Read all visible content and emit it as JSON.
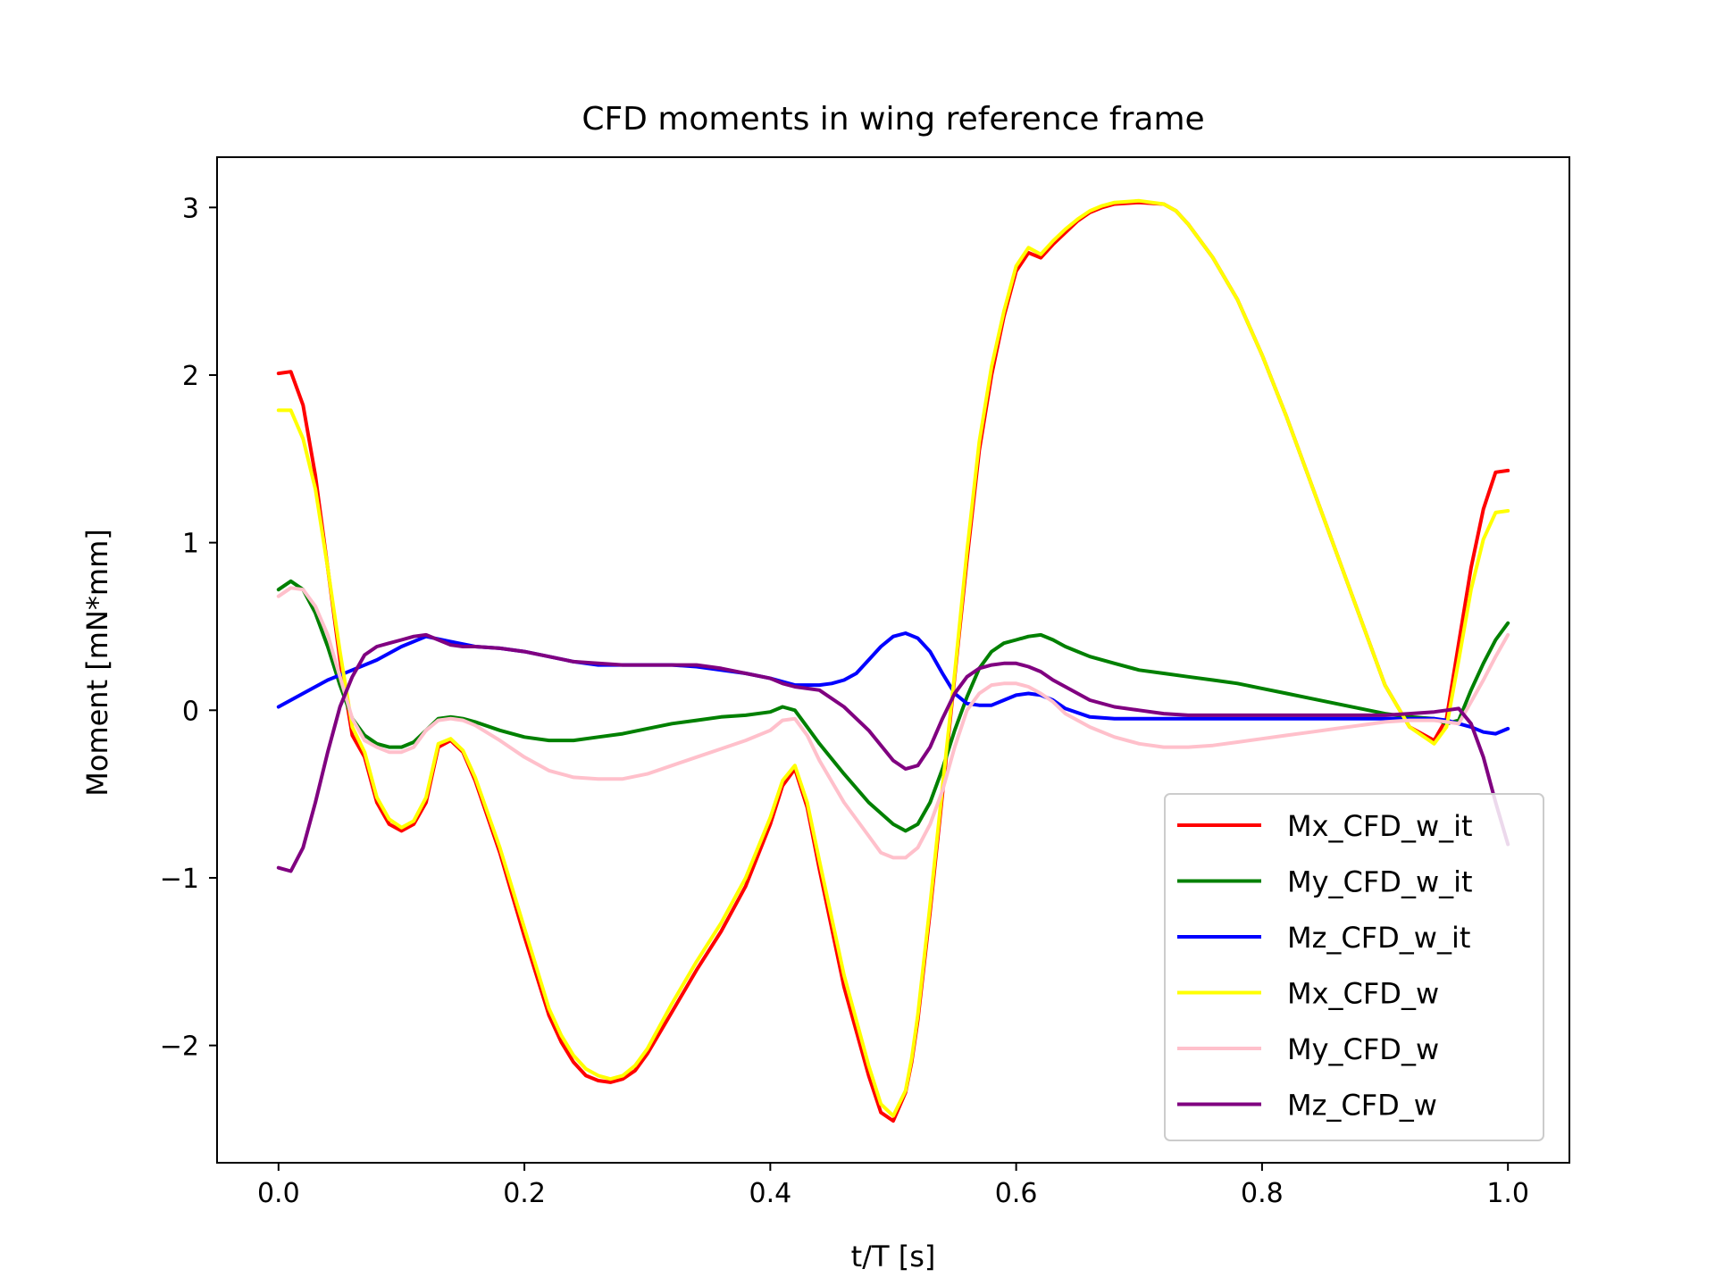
{
  "chart_data": {
    "type": "line",
    "title": "CFD moments in wing reference frame",
    "xlabel": "t/T [s]",
    "ylabel": "Moment [mN*mm]",
    "xlim": [
      -0.05,
      1.05
    ],
    "ylim": [
      -2.7,
      3.3
    ],
    "xticks": [
      0.0,
      0.2,
      0.4,
      0.6,
      0.8,
      1.0
    ],
    "xtick_labels": [
      "0.0",
      "0.2",
      "0.4",
      "0.6",
      "0.8",
      "1.0"
    ],
    "yticks": [
      -2,
      -1,
      0,
      1,
      2,
      3
    ],
    "ytick_labels": [
      "−2",
      "−1",
      "0",
      "1",
      "2",
      "3"
    ],
    "legend_position": "bottom-right",
    "grid": false,
    "series": [
      {
        "name": "Mx_CFD_w_it",
        "color": "#ff0000",
        "x": [
          0.0,
          0.01,
          0.02,
          0.03,
          0.04,
          0.05,
          0.06,
          0.07,
          0.08,
          0.09,
          0.1,
          0.11,
          0.12,
          0.13,
          0.14,
          0.15,
          0.16,
          0.18,
          0.2,
          0.22,
          0.23,
          0.24,
          0.25,
          0.26,
          0.27,
          0.28,
          0.29,
          0.3,
          0.32,
          0.34,
          0.36,
          0.38,
          0.4,
          0.41,
          0.42,
          0.43,
          0.44,
          0.46,
          0.48,
          0.49,
          0.5,
          0.51,
          0.515,
          0.52,
          0.53,
          0.54,
          0.55,
          0.56,
          0.57,
          0.58,
          0.59,
          0.6,
          0.61,
          0.62,
          0.63,
          0.64,
          0.65,
          0.66,
          0.67,
          0.68,
          0.7,
          0.72,
          0.73,
          0.74,
          0.76,
          0.78,
          0.8,
          0.82,
          0.84,
          0.86,
          0.88,
          0.9,
          0.92,
          0.94,
          0.95,
          0.96,
          0.97,
          0.98,
          0.99,
          1.0
        ],
        "y": [
          2.01,
          2.02,
          1.82,
          1.4,
          0.85,
          0.3,
          -0.15,
          -0.28,
          -0.55,
          -0.68,
          -0.72,
          -0.68,
          -0.55,
          -0.22,
          -0.18,
          -0.25,
          -0.42,
          -0.85,
          -1.35,
          -1.82,
          -1.98,
          -2.1,
          -2.18,
          -2.21,
          -2.22,
          -2.2,
          -2.15,
          -2.05,
          -1.8,
          -1.55,
          -1.32,
          -1.05,
          -0.68,
          -0.45,
          -0.35,
          -0.58,
          -0.95,
          -1.65,
          -2.18,
          -2.4,
          -2.45,
          -2.28,
          -2.1,
          -1.85,
          -1.2,
          -0.5,
          0.2,
          0.9,
          1.55,
          2.0,
          2.35,
          2.62,
          2.73,
          2.7,
          2.78,
          2.85,
          2.92,
          2.97,
          3.0,
          3.02,
          3.03,
          3.02,
          2.98,
          2.9,
          2.7,
          2.45,
          2.12,
          1.75,
          1.35,
          0.95,
          0.55,
          0.15,
          -0.1,
          -0.18,
          -0.05,
          0.4,
          0.85,
          1.2,
          1.42,
          1.43
        ]
      },
      {
        "name": "My_CFD_w_it",
        "color": "#008000",
        "x": [
          0.0,
          0.01,
          0.02,
          0.03,
          0.04,
          0.05,
          0.06,
          0.07,
          0.08,
          0.09,
          0.1,
          0.11,
          0.12,
          0.13,
          0.14,
          0.15,
          0.16,
          0.18,
          0.2,
          0.22,
          0.24,
          0.26,
          0.28,
          0.3,
          0.32,
          0.34,
          0.36,
          0.38,
          0.4,
          0.41,
          0.42,
          0.43,
          0.44,
          0.46,
          0.48,
          0.5,
          0.51,
          0.52,
          0.53,
          0.54,
          0.55,
          0.56,
          0.57,
          0.58,
          0.59,
          0.6,
          0.61,
          0.62,
          0.63,
          0.64,
          0.65,
          0.66,
          0.68,
          0.7,
          0.72,
          0.74,
          0.76,
          0.78,
          0.8,
          0.82,
          0.84,
          0.86,
          0.88,
          0.9,
          0.92,
          0.94,
          0.95,
          0.96,
          0.97,
          0.98,
          0.99,
          1.0
        ],
        "y": [
          0.72,
          0.77,
          0.72,
          0.58,
          0.38,
          0.15,
          -0.05,
          -0.15,
          -0.2,
          -0.22,
          -0.22,
          -0.19,
          -0.12,
          -0.05,
          -0.04,
          -0.05,
          -0.07,
          -0.12,
          -0.16,
          -0.18,
          -0.18,
          -0.16,
          -0.14,
          -0.11,
          -0.08,
          -0.06,
          -0.04,
          -0.03,
          -0.01,
          0.02,
          0.0,
          -0.1,
          -0.2,
          -0.38,
          -0.55,
          -0.68,
          -0.72,
          -0.68,
          -0.55,
          -0.35,
          -0.12,
          0.08,
          0.25,
          0.35,
          0.4,
          0.42,
          0.44,
          0.45,
          0.42,
          0.38,
          0.35,
          0.32,
          0.28,
          0.24,
          0.22,
          0.2,
          0.18,
          0.16,
          0.13,
          0.1,
          0.07,
          0.04,
          0.01,
          -0.02,
          -0.04,
          -0.05,
          -0.08,
          -0.06,
          0.12,
          0.28,
          0.42,
          0.52
        ]
      },
      {
        "name": "Mz_CFD_w_it",
        "color": "#0000ff",
        "x": [
          0.0,
          0.02,
          0.04,
          0.06,
          0.08,
          0.1,
          0.12,
          0.14,
          0.16,
          0.18,
          0.2,
          0.22,
          0.24,
          0.26,
          0.28,
          0.3,
          0.32,
          0.34,
          0.36,
          0.38,
          0.4,
          0.42,
          0.44,
          0.45,
          0.46,
          0.47,
          0.48,
          0.49,
          0.5,
          0.51,
          0.52,
          0.53,
          0.54,
          0.55,
          0.56,
          0.57,
          0.58,
          0.59,
          0.6,
          0.61,
          0.62,
          0.63,
          0.64,
          0.66,
          0.68,
          0.7,
          0.72,
          0.74,
          0.76,
          0.78,
          0.8,
          0.82,
          0.84,
          0.86,
          0.88,
          0.9,
          0.92,
          0.94,
          0.95,
          0.96,
          0.97,
          0.98,
          0.99,
          1.0
        ],
        "y": [
          0.02,
          0.1,
          0.18,
          0.24,
          0.3,
          0.38,
          0.44,
          0.41,
          0.38,
          0.37,
          0.35,
          0.32,
          0.29,
          0.27,
          0.27,
          0.27,
          0.27,
          0.26,
          0.24,
          0.22,
          0.19,
          0.15,
          0.15,
          0.16,
          0.18,
          0.22,
          0.3,
          0.38,
          0.44,
          0.46,
          0.43,
          0.35,
          0.22,
          0.1,
          0.04,
          0.03,
          0.03,
          0.06,
          0.09,
          0.1,
          0.09,
          0.06,
          0.01,
          -0.04,
          -0.05,
          -0.05,
          -0.05,
          -0.05,
          -0.05,
          -0.05,
          -0.05,
          -0.05,
          -0.05,
          -0.05,
          -0.05,
          -0.05,
          -0.05,
          -0.05,
          -0.06,
          -0.08,
          -0.1,
          -0.13,
          -0.14,
          -0.11
        ]
      },
      {
        "name": "Mx_CFD_w",
        "color": "#ffff00",
        "x": [
          0.0,
          0.01,
          0.02,
          0.03,
          0.04,
          0.05,
          0.06,
          0.07,
          0.08,
          0.09,
          0.1,
          0.11,
          0.12,
          0.13,
          0.14,
          0.15,
          0.16,
          0.18,
          0.2,
          0.22,
          0.23,
          0.24,
          0.25,
          0.26,
          0.27,
          0.28,
          0.29,
          0.3,
          0.32,
          0.34,
          0.36,
          0.38,
          0.4,
          0.41,
          0.42,
          0.43,
          0.44,
          0.46,
          0.48,
          0.49,
          0.5,
          0.51,
          0.515,
          0.52,
          0.53,
          0.54,
          0.55,
          0.56,
          0.57,
          0.58,
          0.59,
          0.6,
          0.61,
          0.62,
          0.63,
          0.64,
          0.65,
          0.66,
          0.67,
          0.68,
          0.7,
          0.72,
          0.73,
          0.74,
          0.76,
          0.78,
          0.8,
          0.82,
          0.84,
          0.86,
          0.88,
          0.9,
          0.92,
          0.94,
          0.95,
          0.96,
          0.97,
          0.98,
          0.99,
          1.0
        ],
        "y": [
          1.79,
          1.79,
          1.62,
          1.32,
          0.85,
          0.35,
          -0.1,
          -0.25,
          -0.52,
          -0.65,
          -0.7,
          -0.66,
          -0.52,
          -0.2,
          -0.17,
          -0.24,
          -0.4,
          -0.82,
          -1.3,
          -1.78,
          -1.94,
          -2.06,
          -2.14,
          -2.18,
          -2.2,
          -2.18,
          -2.12,
          -2.02,
          -1.75,
          -1.5,
          -1.27,
          -1.0,
          -0.64,
          -0.42,
          -0.33,
          -0.55,
          -0.9,
          -1.58,
          -2.12,
          -2.35,
          -2.42,
          -2.27,
          -2.08,
          -1.82,
          -1.16,
          -0.46,
          0.22,
          0.95,
          1.6,
          2.05,
          2.38,
          2.65,
          2.76,
          2.72,
          2.8,
          2.87,
          2.93,
          2.98,
          3.01,
          3.03,
          3.04,
          3.02,
          2.98,
          2.9,
          2.7,
          2.45,
          2.12,
          1.75,
          1.35,
          0.95,
          0.55,
          0.15,
          -0.1,
          -0.2,
          -0.1,
          0.3,
          0.72,
          1.02,
          1.18,
          1.19
        ]
      },
      {
        "name": "My_CFD_w",
        "color": "#ffc0cb",
        "x": [
          0.0,
          0.01,
          0.02,
          0.03,
          0.04,
          0.05,
          0.06,
          0.07,
          0.08,
          0.09,
          0.1,
          0.11,
          0.12,
          0.13,
          0.14,
          0.15,
          0.16,
          0.18,
          0.2,
          0.22,
          0.24,
          0.26,
          0.28,
          0.3,
          0.32,
          0.34,
          0.36,
          0.38,
          0.4,
          0.41,
          0.42,
          0.43,
          0.44,
          0.46,
          0.48,
          0.49,
          0.5,
          0.51,
          0.52,
          0.53,
          0.54,
          0.55,
          0.56,
          0.57,
          0.58,
          0.59,
          0.6,
          0.61,
          0.62,
          0.63,
          0.64,
          0.66,
          0.68,
          0.7,
          0.72,
          0.74,
          0.76,
          0.78,
          0.8,
          0.82,
          0.84,
          0.86,
          0.88,
          0.9,
          0.92,
          0.94,
          0.95,
          0.96,
          0.97,
          0.98,
          0.99,
          1.0
        ],
        "y": [
          0.68,
          0.73,
          0.72,
          0.62,
          0.45,
          0.2,
          -0.05,
          -0.18,
          -0.22,
          -0.25,
          -0.25,
          -0.22,
          -0.12,
          -0.06,
          -0.05,
          -0.06,
          -0.09,
          -0.18,
          -0.28,
          -0.36,
          -0.4,
          -0.41,
          -0.41,
          -0.38,
          -0.33,
          -0.28,
          -0.23,
          -0.18,
          -0.12,
          -0.06,
          -0.05,
          -0.15,
          -0.3,
          -0.55,
          -0.75,
          -0.85,
          -0.88,
          -0.88,
          -0.82,
          -0.68,
          -0.48,
          -0.22,
          0.0,
          0.1,
          0.15,
          0.16,
          0.16,
          0.14,
          0.1,
          0.05,
          -0.02,
          -0.1,
          -0.16,
          -0.2,
          -0.22,
          -0.22,
          -0.21,
          -0.19,
          -0.17,
          -0.15,
          -0.13,
          -0.11,
          -0.09,
          -0.07,
          -0.06,
          -0.06,
          -0.07,
          -0.08,
          0.05,
          0.18,
          0.32,
          0.45
        ]
      },
      {
        "name": "Mz_CFD_w",
        "color": "#800080",
        "x": [
          0.0,
          0.01,
          0.02,
          0.03,
          0.04,
          0.05,
          0.06,
          0.07,
          0.08,
          0.09,
          0.1,
          0.11,
          0.12,
          0.13,
          0.14,
          0.15,
          0.16,
          0.18,
          0.2,
          0.22,
          0.24,
          0.26,
          0.28,
          0.3,
          0.32,
          0.34,
          0.36,
          0.38,
          0.4,
          0.41,
          0.42,
          0.43,
          0.44,
          0.46,
          0.48,
          0.5,
          0.51,
          0.52,
          0.53,
          0.54,
          0.55,
          0.56,
          0.57,
          0.58,
          0.59,
          0.6,
          0.61,
          0.62,
          0.63,
          0.64,
          0.66,
          0.68,
          0.7,
          0.72,
          0.74,
          0.76,
          0.78,
          0.8,
          0.82,
          0.84,
          0.86,
          0.88,
          0.9,
          0.92,
          0.94,
          0.95,
          0.96,
          0.97,
          0.98,
          0.99,
          1.0
        ],
        "y": [
          -0.94,
          -0.96,
          -0.82,
          -0.55,
          -0.25,
          0.02,
          0.2,
          0.33,
          0.38,
          0.4,
          0.42,
          0.44,
          0.45,
          0.42,
          0.39,
          0.38,
          0.38,
          0.37,
          0.35,
          0.32,
          0.29,
          0.28,
          0.27,
          0.27,
          0.27,
          0.27,
          0.25,
          0.22,
          0.19,
          0.16,
          0.14,
          0.13,
          0.12,
          0.02,
          -0.12,
          -0.3,
          -0.35,
          -0.33,
          -0.22,
          -0.05,
          0.1,
          0.2,
          0.25,
          0.27,
          0.28,
          0.28,
          0.26,
          0.23,
          0.18,
          0.14,
          0.06,
          0.02,
          0.0,
          -0.02,
          -0.03,
          -0.03,
          -0.03,
          -0.03,
          -0.03,
          -0.03,
          -0.03,
          -0.03,
          -0.03,
          -0.02,
          -0.01,
          0.0,
          0.01,
          -0.08,
          -0.28,
          -0.55,
          -0.8
        ]
      }
    ]
  }
}
